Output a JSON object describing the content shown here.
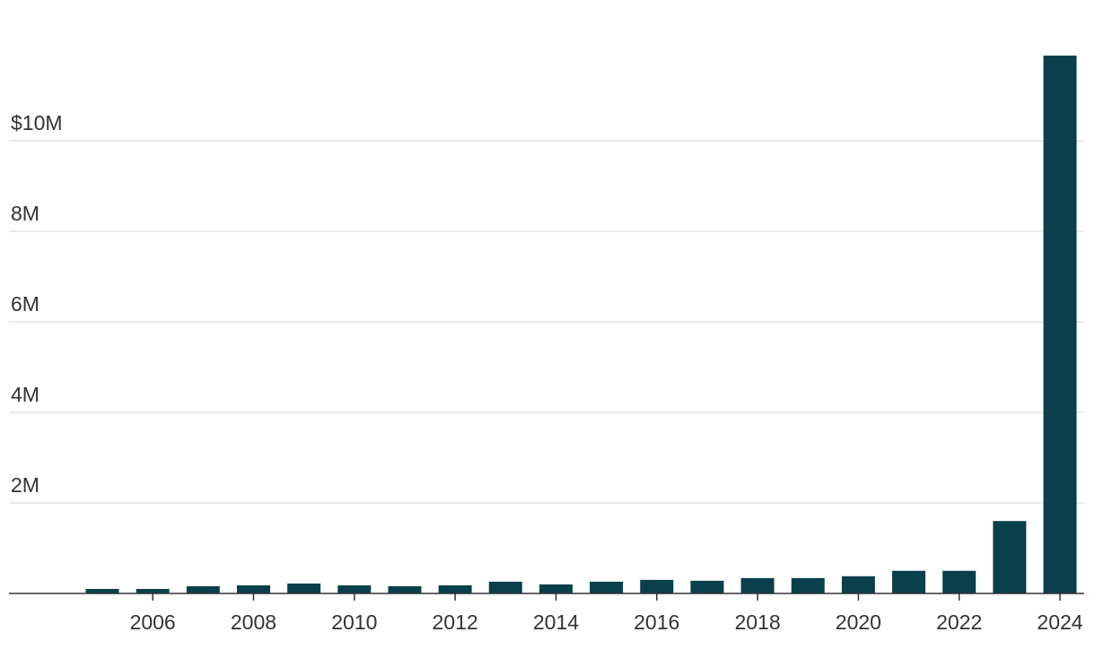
{
  "chart_data": {
    "type": "bar",
    "categories": [
      null,
      "2006",
      null,
      "2008",
      null,
      "2010",
      null,
      "2012",
      null,
      "2014",
      null,
      "2016",
      null,
      "2018",
      null,
      "2020",
      null,
      "2022",
      null,
      "2024"
    ],
    "values": [
      100000,
      100000,
      160000,
      180000,
      220000,
      180000,
      160000,
      180000,
      260000,
      200000,
      260000,
      300000,
      280000,
      340000,
      340000,
      380000,
      500000,
      500000,
      1600000,
      11880000
    ],
    "color": "#0a3f4c",
    "ylim": [
      0,
      12000000
    ],
    "yticks": [
      {
        "value": 2000000,
        "label": "2M"
      },
      {
        "value": 4000000,
        "label": "4M"
      },
      {
        "value": 6000000,
        "label": "6M"
      },
      {
        "value": 8000000,
        "label": "8M"
      },
      {
        "value": 10000000,
        "label": "$10M"
      }
    ],
    "grid": true
  }
}
